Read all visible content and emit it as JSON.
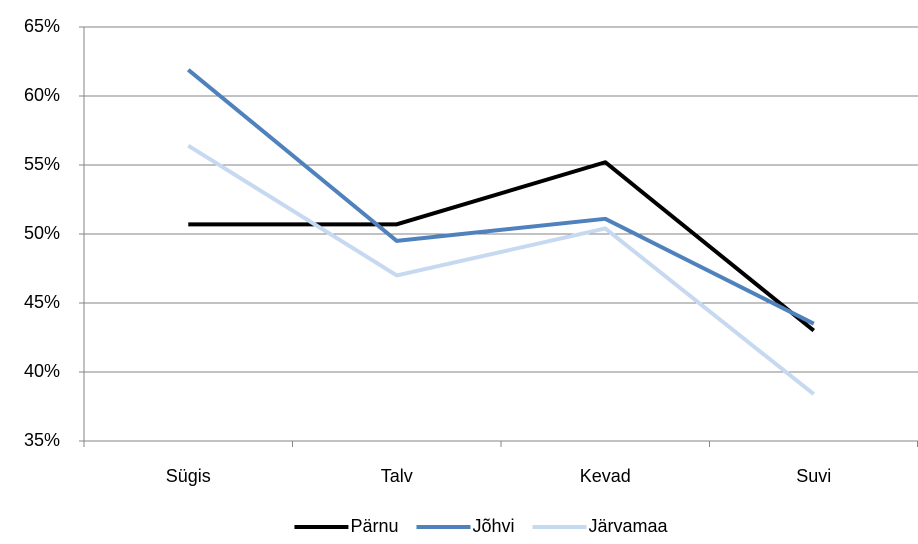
{
  "chart_data": {
    "type": "line",
    "categories": [
      "Sügis",
      "Talv",
      "Kevad",
      "Suvi"
    ],
    "series": [
      {
        "name": "Pärnu",
        "color": "#000000",
        "values": [
          50.7,
          50.7,
          55.2,
          43.0
        ]
      },
      {
        "name": "Jõhvi",
        "color": "#4f81bd",
        "values": [
          61.9,
          49.5,
          51.1,
          43.5
        ]
      },
      {
        "name": "Järvamaa",
        "color": "#c6d9f1",
        "values": [
          56.4,
          47.0,
          50.4,
          38.4
        ]
      }
    ],
    "ylim": [
      35,
      65
    ],
    "yticks": [
      {
        "value": 35,
        "label": "35%"
      },
      {
        "value": 40,
        "label": "40%"
      },
      {
        "value": 45,
        "label": "45%"
      },
      {
        "value": 50,
        "label": "50%"
      },
      {
        "value": 55,
        "label": "55%"
      },
      {
        "value": 60,
        "label": "60%"
      },
      {
        "value": 65,
        "label": "65%"
      }
    ],
    "grid": true,
    "legend": "bottom"
  }
}
